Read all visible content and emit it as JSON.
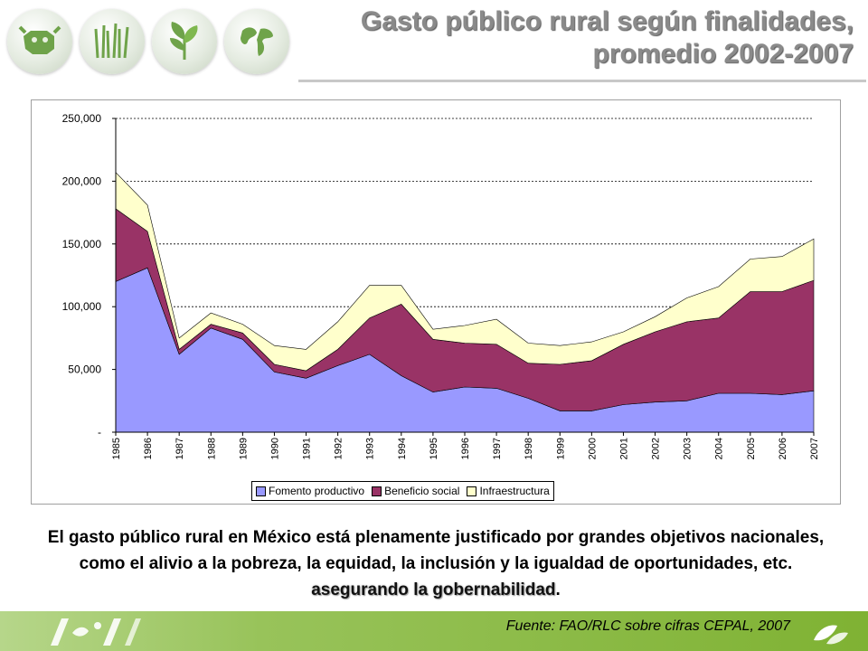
{
  "header": {
    "title_line1": "Gasto público rural según finalidades,",
    "title_line2": "promedio 2002-2007"
  },
  "colors": {
    "fomento": "#9999ff",
    "beneficio": "#993366",
    "infraestructura": "#ffffcc",
    "title": "#8a8a8a",
    "footer_green": "#8cbf45"
  },
  "chart_data": {
    "type": "area",
    "stacked": true,
    "x": [
      "1985",
      "1986",
      "1987",
      "1988",
      "1989",
      "1990",
      "1991",
      "1992",
      "1993",
      "1994",
      "1995",
      "1996",
      "1997",
      "1998",
      "1999",
      "2000",
      "2001",
      "2002",
      "2003",
      "2004",
      "2005",
      "2006",
      "2007"
    ],
    "y_ticks": [
      "-",
      "50,000",
      "100,000",
      "150,000",
      "200,000",
      "250,000"
    ],
    "ylim": [
      0,
      250000
    ],
    "grid": "dashed horizontal",
    "legend_position": "bottom",
    "series": [
      {
        "name": "Fomento productivo",
        "values": [
          120000,
          131000,
          62000,
          83000,
          74000,
          48000,
          43000,
          53000,
          62000,
          45000,
          32000,
          36000,
          35000,
          27000,
          17000,
          17000,
          22000,
          24000,
          25000,
          31000,
          31000,
          30000,
          33000
        ]
      },
      {
        "name": "Beneficio social",
        "values": [
          58000,
          29000,
          4000,
          3000,
          5000,
          6000,
          6000,
          13000,
          29000,
          57000,
          42000,
          35000,
          35000,
          28000,
          37000,
          40000,
          48000,
          56000,
          63000,
          60000,
          81000,
          82000,
          88000
        ]
      },
      {
        "name": "Infraestructura",
        "values": [
          29000,
          21000,
          9000,
          9000,
          7000,
          15000,
          17000,
          22000,
          26000,
          15000,
          8000,
          14000,
          20000,
          16000,
          15000,
          15000,
          10000,
          12000,
          19000,
          25000,
          26000,
          28000,
          33000
        ]
      }
    ]
  },
  "body": {
    "text": "El gasto público rural en México está plenamente justificado por grandes objetivos nacionales, como el alivio a la pobreza, la equidad, la inclusión y la igualdad de oportunidades, etc.",
    "emphasis": "asegurando la gobernabilidad",
    "end": "."
  },
  "footer": {
    "source": "Fuente: FAO/RLC sobre cifras CEPAL, 2007"
  },
  "icons": [
    "cow-icon",
    "grass-icon",
    "plant-icon",
    "globe-icon",
    "fao-logo-icon",
    "leaf-logo-icon"
  ]
}
